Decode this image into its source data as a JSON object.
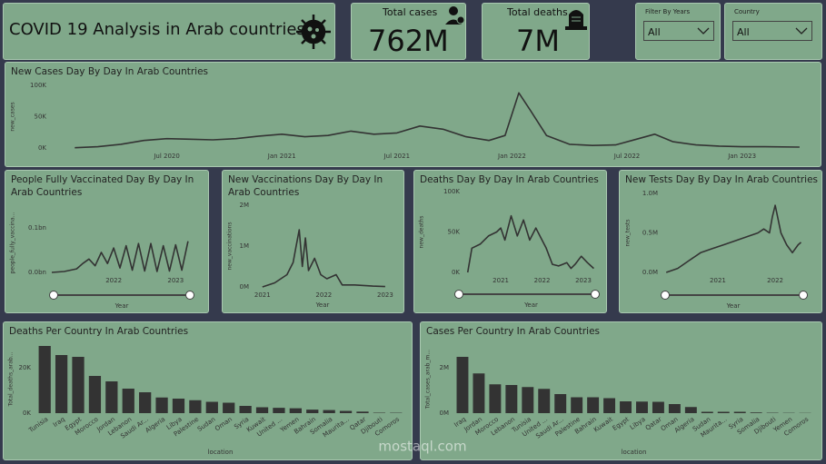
{
  "header": {
    "title": "COVID 19 Analysis in Arab countries"
  },
  "cards": [
    {
      "label": "Total cases",
      "value": "762M"
    },
    {
      "label": "Total deaths",
      "value": "7M"
    }
  ],
  "filters": [
    {
      "label": "Filter By Years",
      "selected": "All"
    },
    {
      "label": "Country",
      "selected": "All"
    }
  ],
  "watermark": "mostaql.com",
  "chart_data": [
    {
      "type": "line",
      "title": "New Cases Day By Day In Arab Countries",
      "y_label": "new_cases",
      "color": "#333333",
      "x": [
        2020.1,
        2020.2,
        2020.3,
        2020.4,
        2020.5,
        2020.6,
        2020.7,
        2020.8,
        2020.9,
        2021.0,
        2021.1,
        2021.2,
        2021.3,
        2021.4,
        2021.5,
        2021.6,
        2021.7,
        2021.8,
        2021.9,
        2021.97,
        2022.03,
        2022.08,
        2022.15,
        2022.25,
        2022.35,
        2022.45,
        2022.55,
        2022.62,
        2022.7,
        2022.8,
        2022.9,
        2023.0,
        2023.1,
        2023.25
      ],
      "values": [
        500,
        2000,
        6000,
        12000,
        15000,
        14000,
        13000,
        15000,
        19000,
        22000,
        18000,
        20000,
        27000,
        22000,
        24000,
        35000,
        30000,
        18000,
        12000,
        20000,
        88000,
        60000,
        20000,
        6000,
        4000,
        5000,
        15000,
        22000,
        10000,
        5000,
        3000,
        2000,
        2000,
        1500
      ],
      "xlim": [
        2020,
        2023.27
      ],
      "xticks": [
        {
          "value": 2020.5,
          "label": "Jul 2020"
        },
        {
          "value": 2021,
          "label": "Jan 2021"
        },
        {
          "value": 2021.5,
          "label": "Jul 2021"
        },
        {
          "value": 2022,
          "label": "Jan 2022"
        },
        {
          "value": 2022.5,
          "label": "Jul 2022"
        },
        {
          "value": 2023,
          "label": "Jan 2023"
        }
      ],
      "ylim": [
        0,
        100000
      ],
      "yticks": [
        {
          "value": 0,
          "label": "0K"
        },
        {
          "value": 50000,
          "label": "50K"
        },
        {
          "value": 100000,
          "label": "100K"
        }
      ]
    },
    {
      "type": "line",
      "title": "People Fully Vaccinated Day By Day In Arab Countries",
      "x_label": "Year",
      "y_label": "people_fully_vaccina...",
      "color": "#333333",
      "x": [
        2021.0,
        2021.2,
        2021.4,
        2021.5,
        2021.6,
        2021.7,
        2021.8,
        2021.9,
        2022.0,
        2022.1,
        2022.2,
        2022.3,
        2022.4,
        2022.5,
        2022.6,
        2022.7,
        2022.8,
        2022.9,
        2023.0,
        2023.1,
        2023.2
      ],
      "values": [
        0,
        2000000,
        8000000,
        20000000,
        30000000,
        15000000,
        45000000,
        20000000,
        55000000,
        10000000,
        60000000,
        5000000,
        65000000,
        3000000,
        65000000,
        2000000,
        60000000,
        3000000,
        62000000,
        5000000,
        70000000
      ],
      "xlim": [
        2021,
        2023.26
      ],
      "xticks": [
        2022,
        2023
      ],
      "ylim": [
        0,
        132700000
      ],
      "yticks": [
        {
          "value": 0,
          "label": "0.0bn"
        },
        {
          "value": 100000000,
          "label": "0.1bn"
        }
      ]
    },
    {
      "type": "line",
      "title": "New Vaccinations Day By Day In Arab Countries",
      "x_label": "Year",
      "y_label": "new_vaccinations",
      "color": "#333333",
      "x": [
        2021.0,
        2021.2,
        2021.4,
        2021.5,
        2021.55,
        2021.6,
        2021.65,
        2021.7,
        2021.75,
        2021.85,
        2021.95,
        2022.05,
        2022.2,
        2022.3,
        2022.5,
        2022.8,
        2023.0
      ],
      "values": [
        0,
        100000,
        300000,
        600000,
        1000000,
        1400000,
        500000,
        1200000,
        400000,
        700000,
        300000,
        200000,
        300000,
        50000,
        50000,
        20000,
        10000
      ],
      "xlim": [
        2020.87,
        2023.09
      ],
      "xticks": [
        2021,
        2022,
        2023
      ],
      "ylim": [
        0,
        2000000
      ],
      "yticks": [
        {
          "value": 0,
          "label": "0M"
        },
        {
          "value": 1000000,
          "label": "1M"
        },
        {
          "value": 2000000,
          "label": "2M"
        }
      ]
    },
    {
      "type": "line",
      "title": "Deaths Day By Day In Arab Countries",
      "x_label": "Year",
      "y_label": "new_deaths",
      "color": "#333333",
      "x": [
        2020.2,
        2020.3,
        2020.5,
        2020.7,
        2020.9,
        2021.0,
        2021.1,
        2021.25,
        2021.4,
        2021.55,
        2021.7,
        2021.85,
        2022.0,
        2022.1,
        2022.25,
        2022.4,
        2022.5,
        2022.6,
        2022.7,
        2022.8,
        2022.95,
        2023.1,
        2023.25
      ],
      "values": [
        0,
        30000,
        35000,
        45000,
        50000,
        55000,
        40000,
        70000,
        45000,
        65000,
        40000,
        55000,
        40000,
        30000,
        10000,
        8000,
        10000,
        12000,
        5000,
        10000,
        20000,
        12000,
        5000
      ],
      "xlim": [
        2020.14,
        2023.33
      ],
      "xticks": [
        2021,
        2022,
        2023
      ],
      "ylim": [
        0,
        100000
      ],
      "yticks": [
        {
          "value": 0,
          "label": "0K"
        },
        {
          "value": 50000,
          "label": "50K"
        },
        {
          "value": 100000,
          "label": "100K"
        }
      ]
    },
    {
      "type": "line",
      "title": "New Tests Day By Day In Arab Countries",
      "x_label": "Year",
      "y_label": "new_tests",
      "color": "#333333",
      "x": [
        2020.1,
        2020.3,
        2020.5,
        2020.7,
        2020.9,
        2021.1,
        2021.3,
        2021.5,
        2021.7,
        2021.8,
        2021.9,
        2021.95,
        2022.0,
        2022.1,
        2022.2,
        2022.3,
        2022.4,
        2022.45
      ],
      "values": [
        0,
        50000,
        150000,
        250000,
        300000,
        350000,
        400000,
        450000,
        500000,
        550000,
        500000,
        700000,
        850000,
        500000,
        350000,
        250000,
        350000,
        380000
      ],
      "xlim": [
        2020.05,
        2022.49
      ],
      "xticks": [
        2021,
        2022
      ],
      "ylim": [
        0,
        1000000
      ],
      "yticks": [
        {
          "value": 0,
          "label": "0.0M"
        },
        {
          "value": 500000,
          "label": "0.5M"
        },
        {
          "value": 1000000,
          "label": "1.0M"
        }
      ]
    },
    {
      "type": "bar",
      "title": "Deaths Per Country In Arab Countries",
      "x_label": "location",
      "y_label": "Total_deaths_arab...",
      "color": "#333333",
      "categories": [
        "Tunisia",
        "Iraq",
        "Egypt",
        "Morocco",
        "Jordan",
        "Lebanon",
        "Saudi Ar...",
        "Algeria",
        "Libya",
        "Palestine",
        "Sudan",
        "Oman",
        "Syria",
        "Kuwait",
        "United ...",
        "Yemen",
        "Bahrain",
        "Somalia",
        "Maurita...",
        "Qatar",
        "Djibouti",
        "Comoros"
      ],
      "values": [
        29600,
        25600,
        24800,
        16400,
        14000,
        10800,
        9200,
        6900,
        6400,
        5700,
        5000,
        4600,
        3200,
        2600,
        2350,
        2150,
        1550,
        1360,
        990,
        680,
        190,
        160
      ],
      "ylim": [
        0,
        30000
      ],
      "yticks": [
        {
          "value": 0,
          "label": "0K"
        },
        {
          "value": 20000,
          "label": "20K"
        }
      ]
    },
    {
      "type": "bar",
      "title": "Cases Per Country In Arab Countries",
      "x_label": "location",
      "y_label": "Total_cases_arab_m...",
      "color": "#333333",
      "categories": [
        "Iraq",
        "Jordan",
        "Morocco",
        "Lebanon",
        "Tunisia",
        "United ...",
        "Saudi Ar...",
        "Palestine",
        "Bahrain",
        "Kuwait",
        "Egypt",
        "Libya",
        "Qatar",
        "Oman",
        "Algeria",
        "Sudan",
        "Maurita...",
        "Syria",
        "Somalia",
        "Djibouti",
        "Yemen",
        "Comoros"
      ],
      "values": [
        2480000,
        1750000,
        1270000,
        1240000,
        1150000,
        1070000,
        840000,
        700000,
        700000,
        660000,
        520000,
        510000,
        500000,
        400000,
        270000,
        60000,
        60000,
        60000,
        30000,
        16000,
        12000,
        9000
      ],
      "ylim": [
        0,
        3000000
      ],
      "yticks": [
        {
          "value": 0,
          "label": "0M"
        },
        {
          "value": 2000000,
          "label": "2M"
        }
      ]
    }
  ]
}
